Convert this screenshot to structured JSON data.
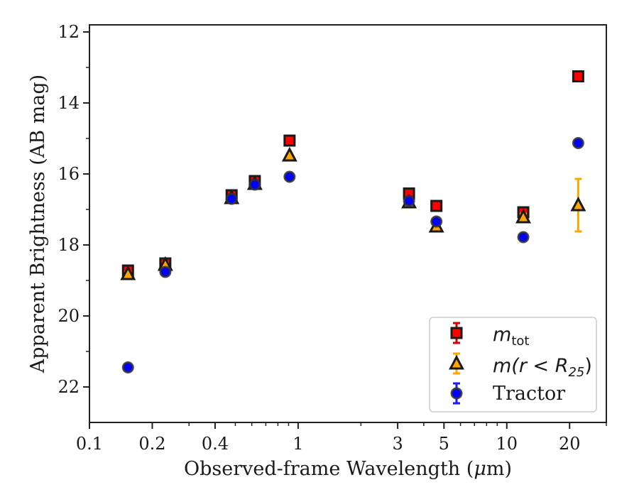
{
  "chart_data": {
    "type": "scatter",
    "xlabel_pre": "Observed-frame Wavelength (",
    "xlabel_mu": "μ",
    "xlabel_post": "m)",
    "ylabel": "Apparent Brightness (AB mag)",
    "xscale": "log",
    "xlim": [
      0.1,
      30
    ],
    "ylim": [
      23,
      11.8
    ],
    "y_inverted": true,
    "x_ticks": [
      {
        "value": 0.1,
        "label": "0.1"
      },
      {
        "value": 0.2,
        "label": "0.2"
      },
      {
        "value": 0.4,
        "label": "0.4"
      },
      {
        "value": 1,
        "label": "1"
      },
      {
        "value": 3,
        "label": "3"
      },
      {
        "value": 5,
        "label": "5"
      },
      {
        "value": 10,
        "label": "10"
      },
      {
        "value": 20,
        "label": "20"
      }
    ],
    "x_minor_ticks": [
      0.3,
      0.5,
      0.6,
      0.7,
      0.8,
      0.9,
      2,
      4,
      6,
      7,
      8,
      9,
      30
    ],
    "y_ticks": [
      {
        "value": 12,
        "label": "12"
      },
      {
        "value": 14,
        "label": "14"
      },
      {
        "value": 16,
        "label": "16"
      },
      {
        "value": 18,
        "label": "18"
      },
      {
        "value": 20,
        "label": "20"
      },
      {
        "value": 22,
        "label": "22"
      }
    ],
    "y_minor_ticks": [
      13,
      15,
      17,
      19,
      21
    ],
    "legend_position": "lower right",
    "series": [
      {
        "name": "m_tot",
        "legend_main": "m",
        "legend_sub": "tot",
        "marker": "square",
        "color": "#ff0000",
        "errcolor": "#d40000",
        "x": [
          0.153,
          0.231,
          0.48,
          0.62,
          0.91,
          3.4,
          4.6,
          12.0,
          22.0
        ],
        "y": [
          18.72,
          18.52,
          16.6,
          16.2,
          15.06,
          16.55,
          16.9,
          17.08,
          13.25
        ],
        "err": [
          0.06,
          0.06,
          0.05,
          0.05,
          0.03,
          0.03,
          0.03,
          0.05,
          0.04
        ]
      },
      {
        "name": "m(r < R25)",
        "legend_main": "m(r < R",
        "legend_sub": "25",
        "legend_post": ")",
        "marker": "triangle",
        "color": "#ffa500",
        "errcolor": "#ffa500",
        "x": [
          0.153,
          0.231,
          0.48,
          0.62,
          0.91,
          3.4,
          4.6,
          12.0,
          22.0
        ],
        "y": [
          18.82,
          18.56,
          16.68,
          16.28,
          15.48,
          16.8,
          17.48,
          17.22,
          16.88
        ],
        "err": [
          0.06,
          0.06,
          0.04,
          0.04,
          0.03,
          0.03,
          0.04,
          0.1,
          0.74
        ]
      },
      {
        "name": "Tractor",
        "legend_main": "Tractor",
        "marker": "circle",
        "color": "#0000ff",
        "errcolor": "#1a1aff",
        "x": [
          0.153,
          0.231,
          0.48,
          0.62,
          0.91,
          3.4,
          4.6,
          12.0,
          22.0
        ],
        "y": [
          21.45,
          18.76,
          16.7,
          16.3,
          16.08,
          16.76,
          17.34,
          17.78,
          15.13
        ],
        "err": [
          0.05,
          0.05,
          0.04,
          0.04,
          0.03,
          0.03,
          0.04,
          0.05,
          0.05
        ]
      }
    ]
  }
}
